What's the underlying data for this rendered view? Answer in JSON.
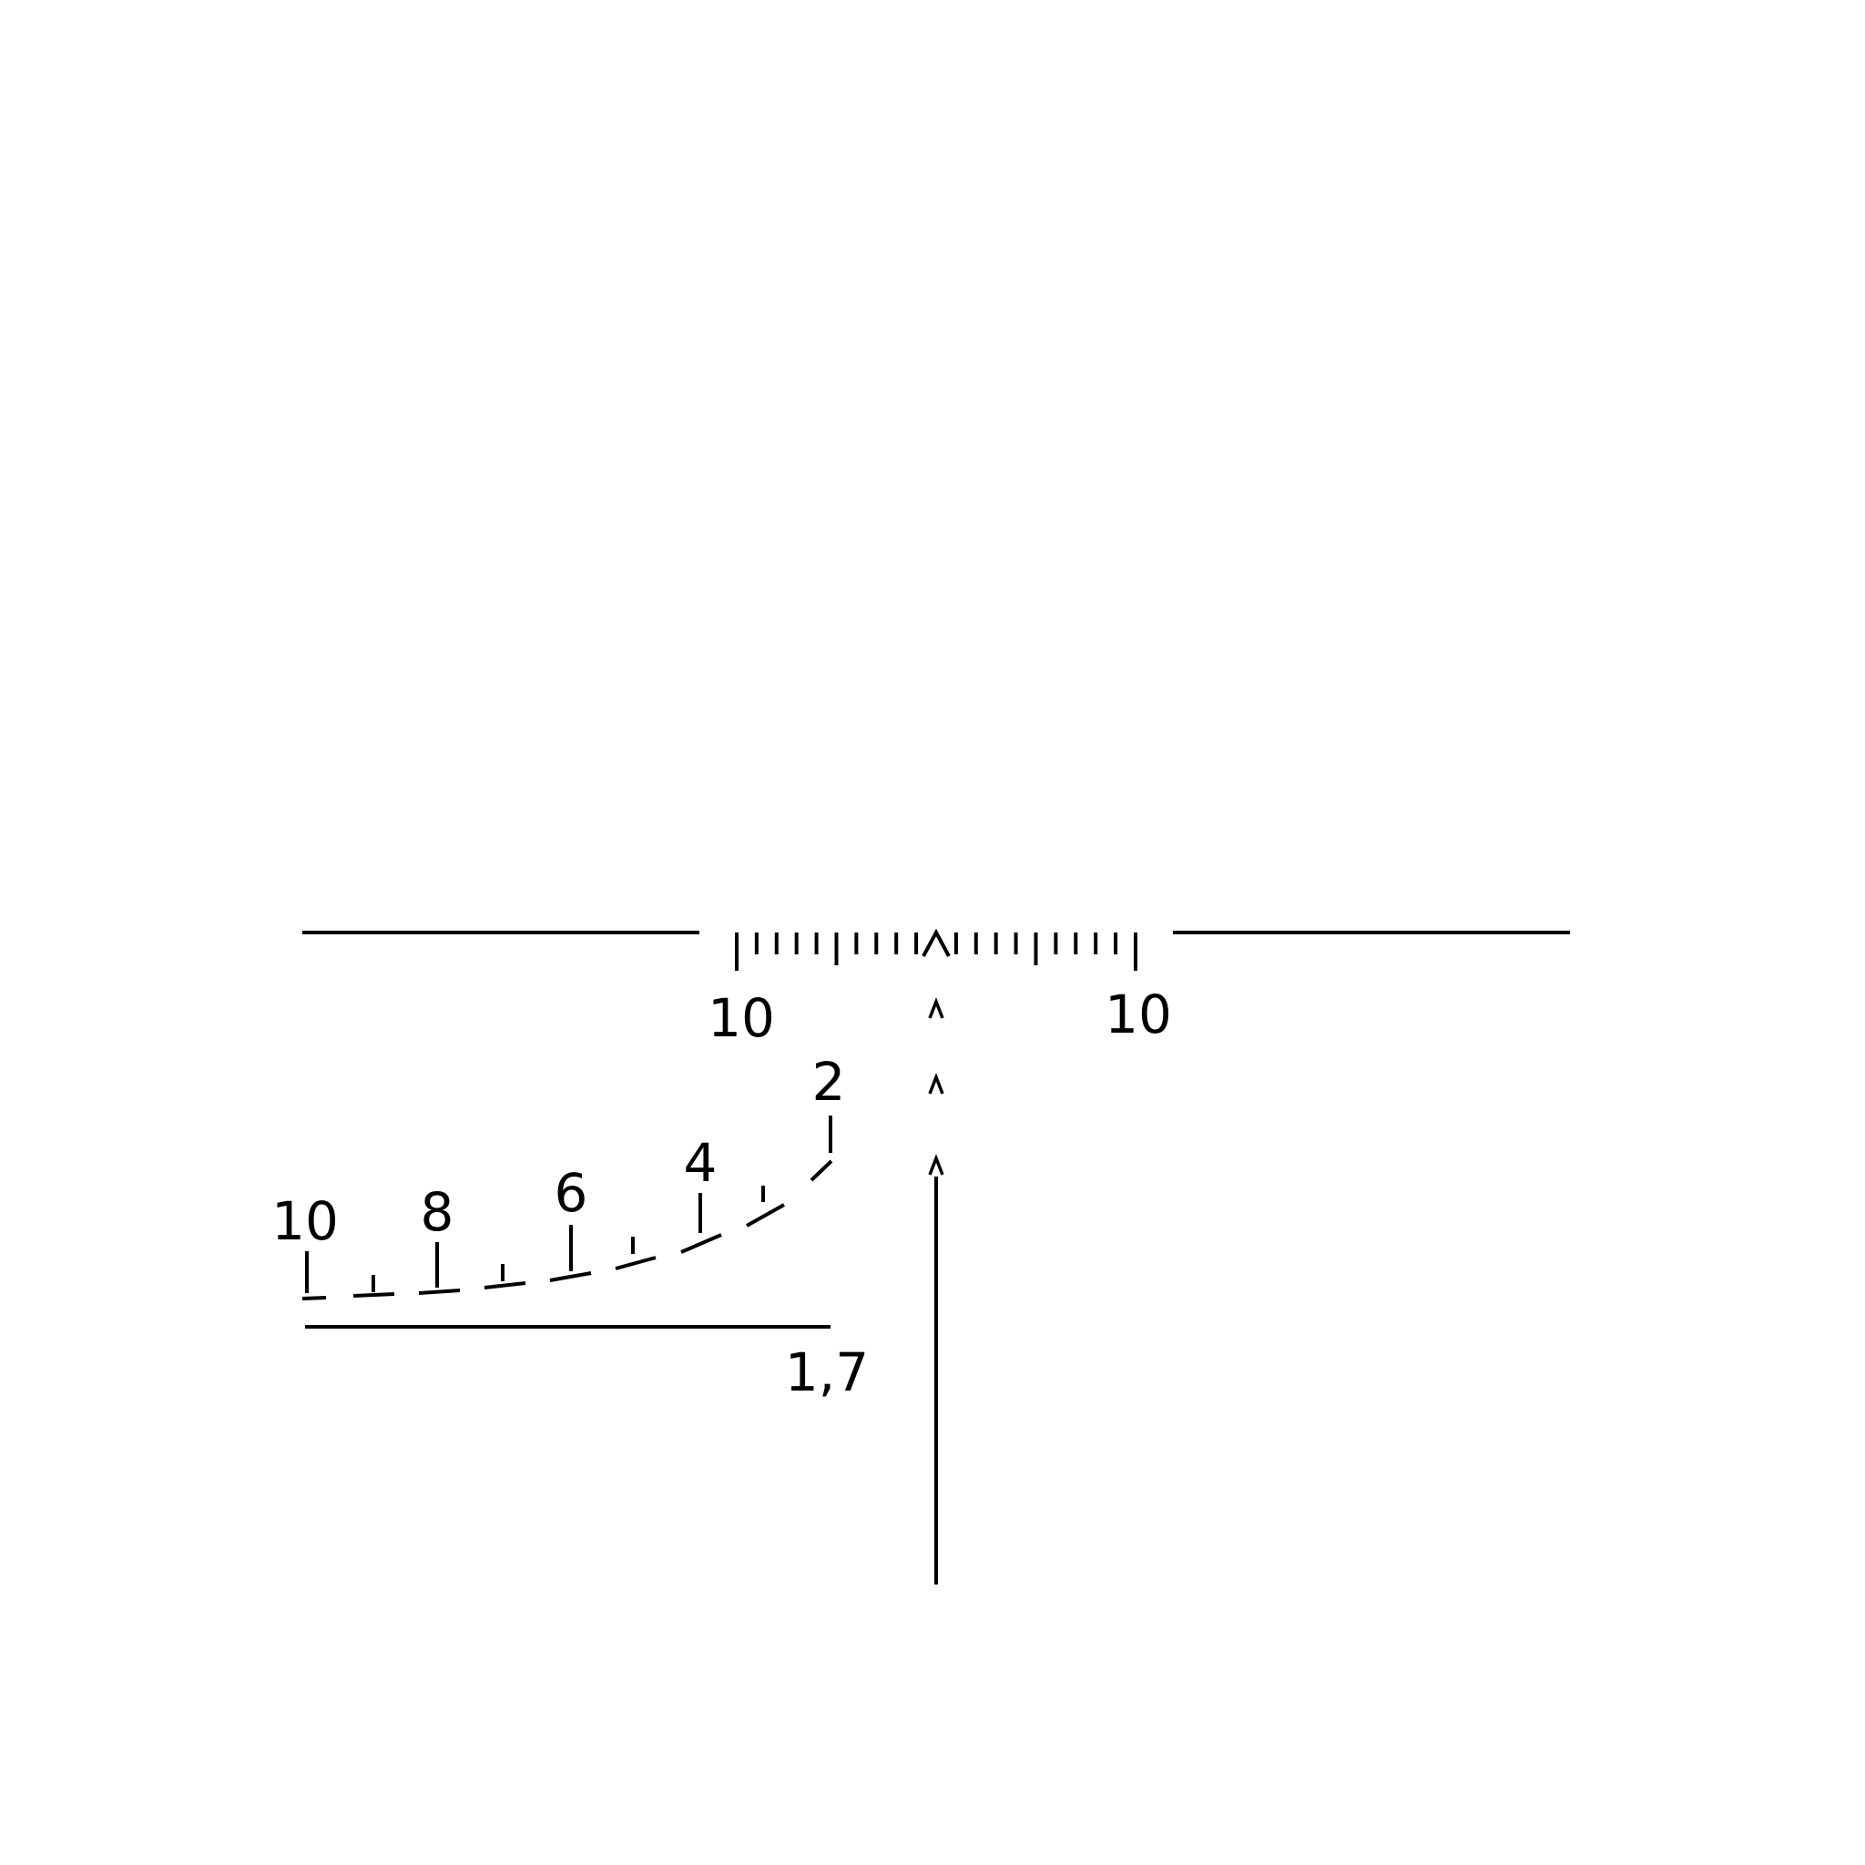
{
  "reticle": {
    "name": "sniper-scope-reticle",
    "color": "#000000",
    "background": "#ffffff",
    "windage_scale": {
      "left_label": "10",
      "right_label": "10",
      "minor_ticks_per_side": 10,
      "long_tick_positions": [
        -10,
        -5,
        5,
        10
      ],
      "center_mark": "chevron"
    },
    "range_scale": {
      "labels": [
        "2",
        "4",
        "6",
        "8",
        "10"
      ],
      "marks": [
        2,
        3,
        4,
        5,
        6,
        7,
        8,
        9,
        10
      ]
    },
    "base_line": {
      "label": "1,7"
    },
    "aim_chevrons": 3
  }
}
